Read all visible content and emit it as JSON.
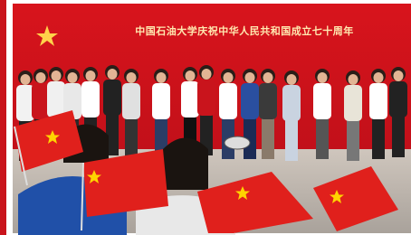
{
  "banner": {
    "title": "中国石油大学庆祝中华人民共和国成立七十周年"
  }
}
